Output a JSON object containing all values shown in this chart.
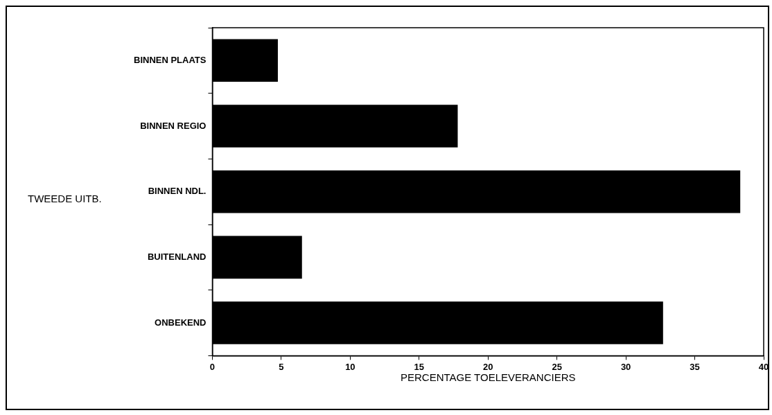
{
  "chart_data": {
    "type": "bar",
    "orientation": "horizontal",
    "categories": [
      "BINNEN PLAATS",
      "BINNEN REGIO",
      "BINNEN NDL.",
      "BUITENLAND",
      "ONBEKEND"
    ],
    "values": [
      4.75,
      17.8,
      38.3,
      6.5,
      32.7
    ],
    "color": "#000000",
    "xlabel": "PERCENTAGE TOELEVERANCIERS",
    "ylabel": "TWEEDE UITB.",
    "xlim": [
      0,
      40
    ],
    "xticks": [
      0,
      5,
      10,
      15,
      20,
      25,
      30,
      35,
      40
    ],
    "grid": false,
    "legend": false
  }
}
